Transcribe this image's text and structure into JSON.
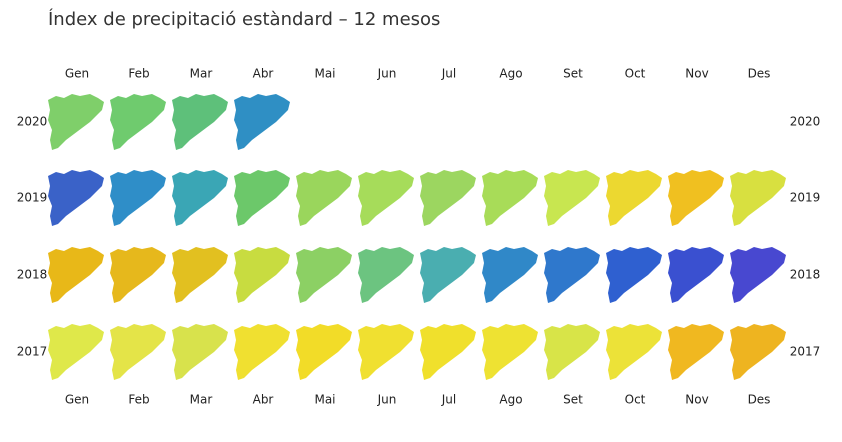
{
  "title": "Índex de precipitació estàndard – 12 mesos",
  "months": [
    "Gen",
    "Feb",
    "Mar",
    "Abr",
    "Mai",
    "Jun",
    "Jul",
    "Ago",
    "Set",
    "Oct",
    "Nov",
    "Des"
  ],
  "rows": [
    {
      "year": "2020",
      "colors": [
        "#7fcf6a",
        "#6fcb6e",
        "#5ec07a",
        "#2f8fc4"
      ]
    },
    {
      "year": "2019",
      "colors": [
        "#3a62c8",
        "#2f8ec8",
        "#3aa6b5",
        "#6cc86a",
        "#9ad65c",
        "#a6dc5a",
        "#9cd660",
        "#a8dc58",
        "#c8e650",
        "#ecd830",
        "#f0c020",
        "#d8e040"
      ]
    },
    {
      "year": "2018",
      "colors": [
        "#e8b818",
        "#e6b81c",
        "#e2c020",
        "#c8dc40",
        "#8cd064",
        "#6cc480",
        "#4aaeb0",
        "#3088c8",
        "#2f78cc",
        "#2f60d0",
        "#3a50d0",
        "#4848d0"
      ]
    },
    {
      "year": "2017",
      "colors": [
        "#dfe84a",
        "#e4e448",
        "#d8e24c",
        "#f0e030",
        "#f2dc28",
        "#f0e030",
        "#f0e02c",
        "#eee232",
        "#d8e448",
        "#ece238",
        "#f0b820",
        "#eeb420"
      ]
    }
  ]
}
